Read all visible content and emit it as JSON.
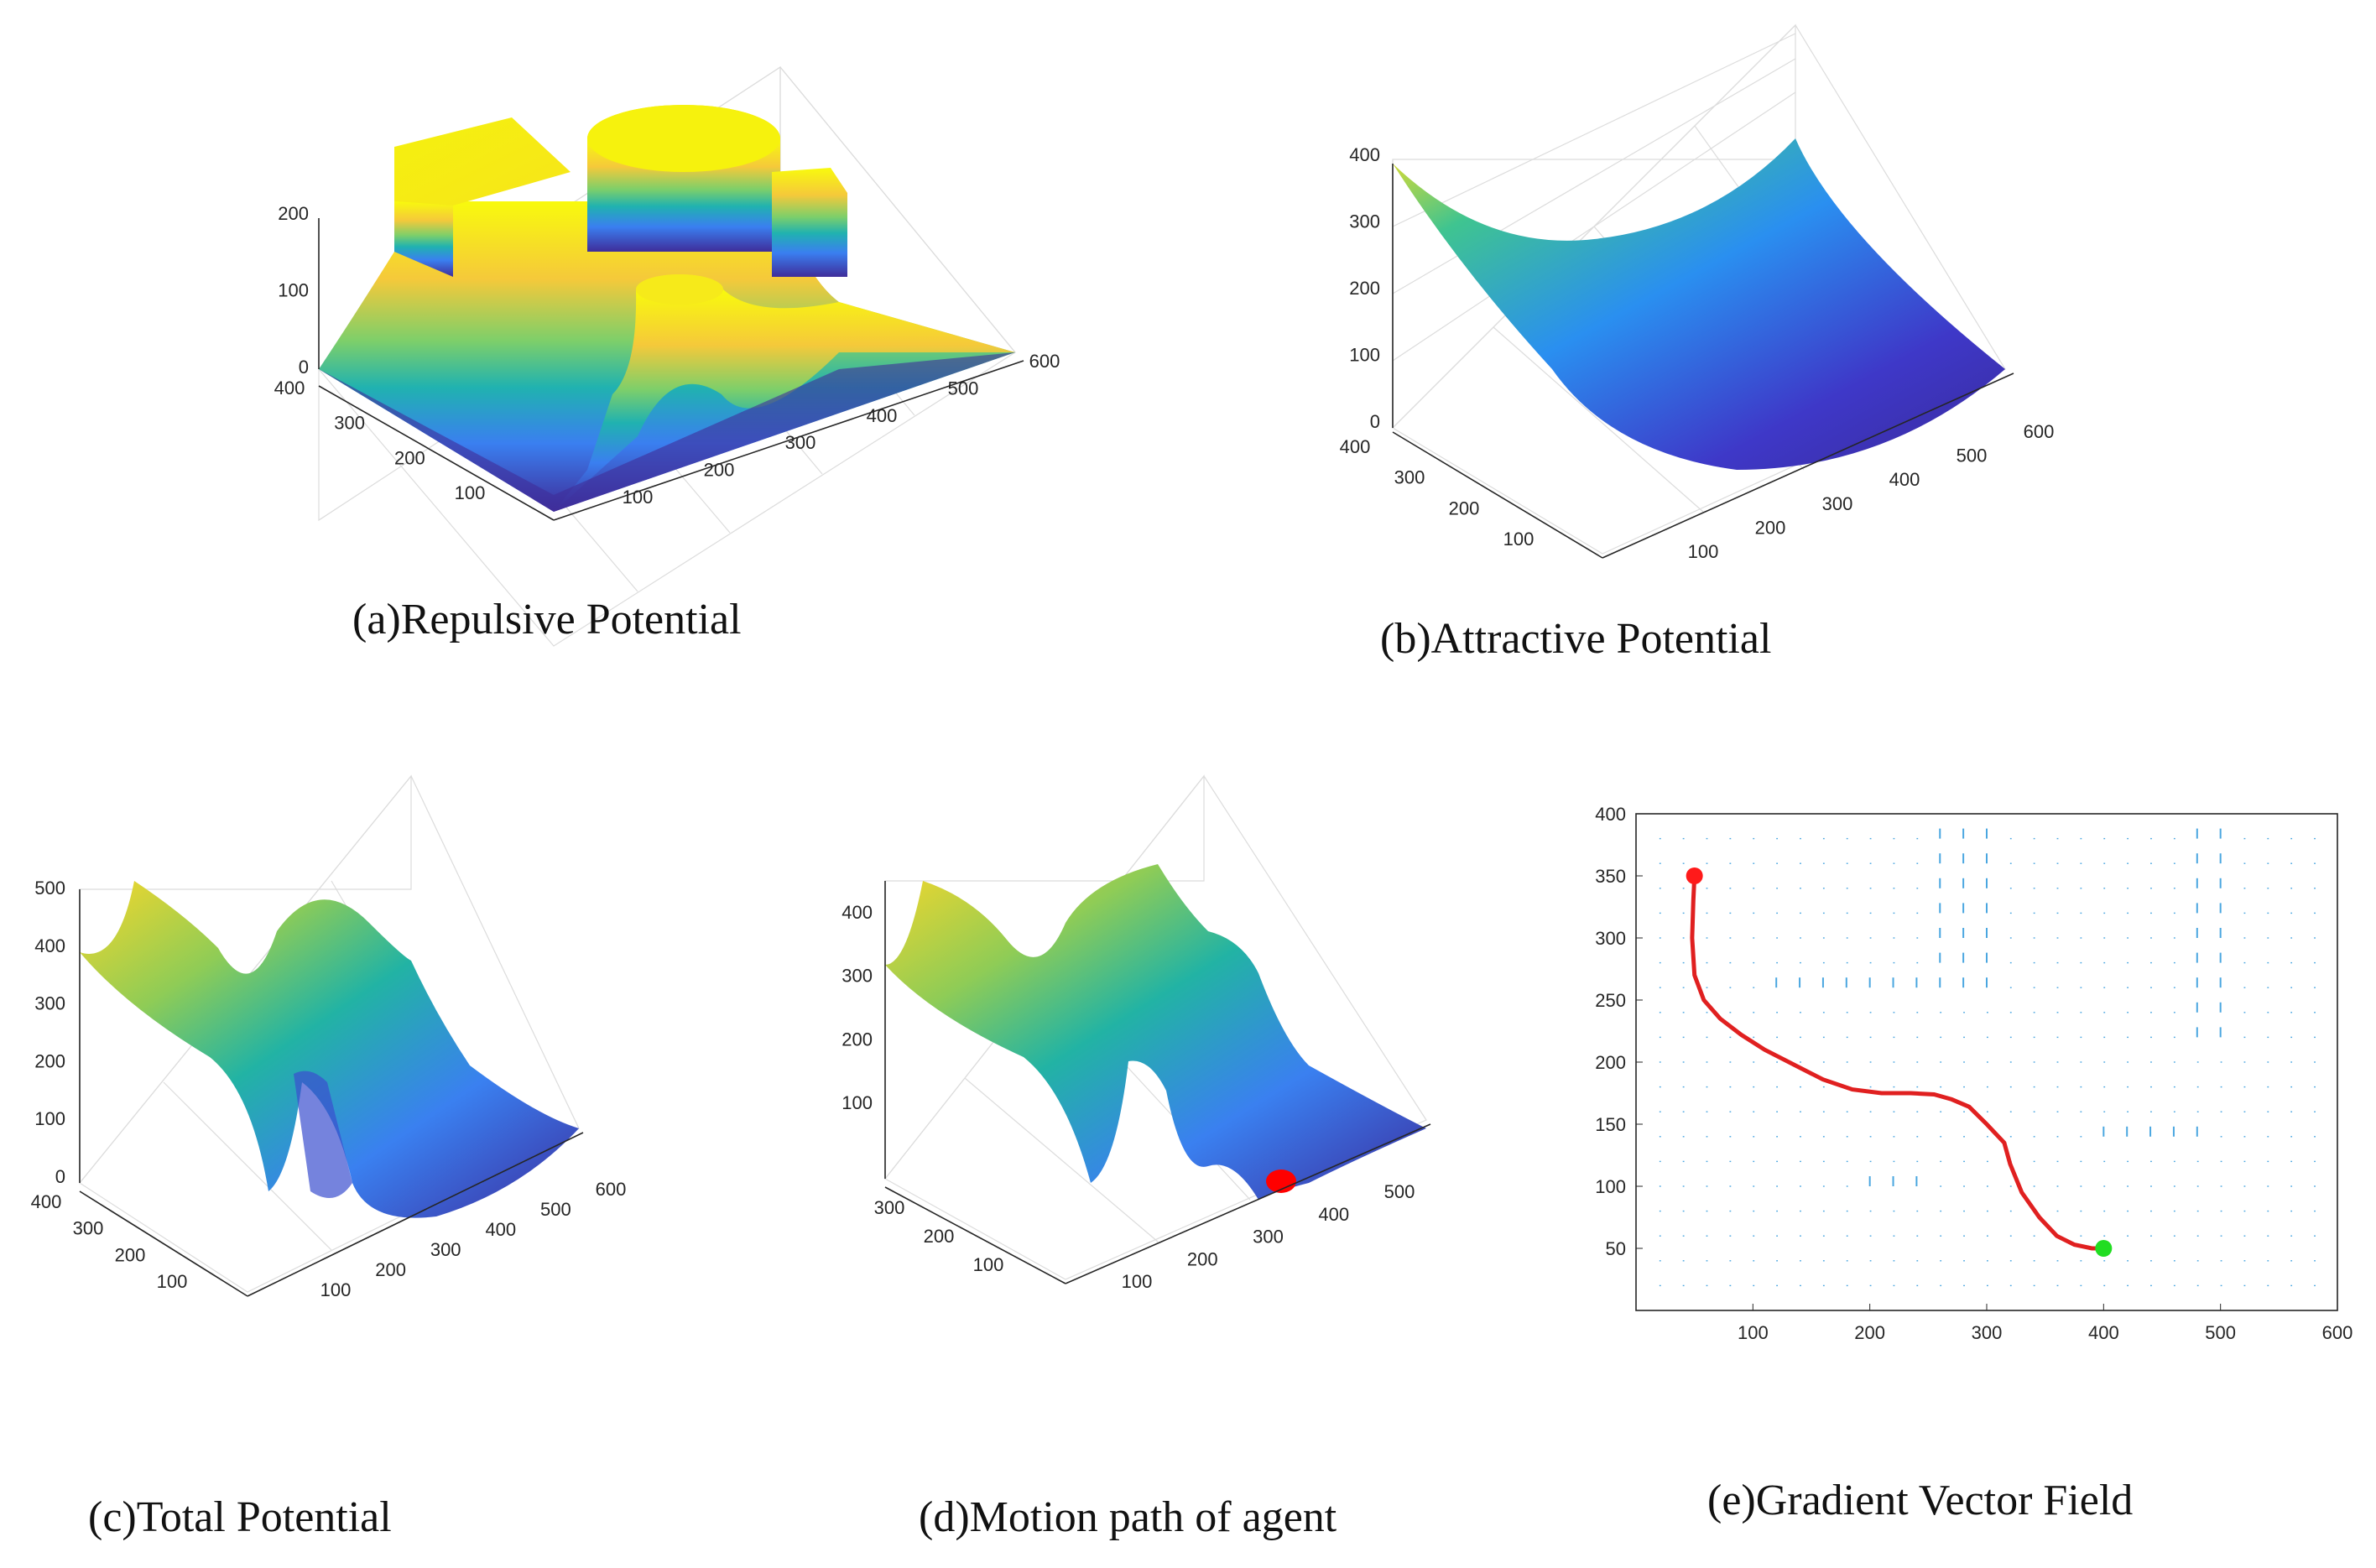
{
  "chart_data": [
    {
      "panel": "a",
      "type": "surface3d",
      "caption": "(a)Repulsive Potential",
      "x_ticks": [
        "100",
        "200",
        "300",
        "400",
        "500",
        "600"
      ],
      "y_ticks": [
        "100",
        "200",
        "300",
        "400"
      ],
      "z_ticks": [
        "0",
        "100",
        "200"
      ],
      "xlim": [
        0,
        600
      ],
      "ylim": [
        0,
        400
      ],
      "zlim": [
        0,
        200
      ],
      "description_values": {
        "plateau_height": 200,
        "base_height": 0
      }
    },
    {
      "panel": "b",
      "type": "surface3d",
      "caption": "(b)Attractive Potential",
      "x_ticks": [
        "100",
        "200",
        "300",
        "400",
        "500",
        "600"
      ],
      "y_ticks": [
        "100",
        "200",
        "300",
        "400"
      ],
      "z_ticks": [
        "0",
        "100",
        "200",
        "300",
        "400"
      ],
      "xlim": [
        0,
        600
      ],
      "ylim": [
        0,
        400
      ],
      "zlim": [
        0,
        400
      ]
    },
    {
      "panel": "c",
      "type": "surface3d",
      "caption": "(c)Total Potential",
      "x_ticks": [
        "100",
        "200",
        "300",
        "400",
        "500",
        "600"
      ],
      "y_ticks": [
        "100",
        "200",
        "300",
        "400"
      ],
      "z_ticks": [
        "0",
        "100",
        "200",
        "300",
        "400",
        "500"
      ],
      "xlim": [
        0,
        600
      ],
      "ylim": [
        0,
        400
      ],
      "zlim": [
        0,
        500
      ]
    },
    {
      "panel": "d",
      "type": "surface3d",
      "caption": "(d)Motion path of agent",
      "x_ticks": [
        "100",
        "200",
        "300",
        "400",
        "500"
      ],
      "y_ticks": [
        "100",
        "200",
        "300"
      ],
      "z_ticks": [
        "100",
        "200",
        "300",
        "400"
      ],
      "xlim": [
        0,
        550
      ],
      "ylim": [
        0,
        350
      ],
      "zlim": [
        0,
        450
      ],
      "marker": {
        "color": "#ff0000",
        "label": "agent"
      }
    },
    {
      "panel": "e",
      "type": "quiver",
      "caption": "(e)Gradient Vector Field",
      "x_ticks": [
        "100",
        "200",
        "300",
        "400",
        "500",
        "600"
      ],
      "y_ticks": [
        "50",
        "100",
        "150",
        "200",
        "250",
        "300",
        "350",
        "400"
      ],
      "xlim": [
        0,
        600
      ],
      "ylim": [
        0,
        400
      ],
      "path": {
        "color": "#e02020",
        "x": [
          50,
          49,
          48,
          50,
          58,
          72,
          90,
          110,
          135,
          160,
          185,
          210,
          235,
          255,
          270,
          285,
          300,
          315,
          320,
          330,
          345,
          360,
          375,
          390,
          400
        ],
        "y": [
          350,
          330,
          300,
          270,
          250,
          235,
          222,
          210,
          198,
          186,
          178,
          175,
          175,
          174,
          170,
          164,
          150,
          135,
          118,
          95,
          75,
          60,
          53,
          50,
          50
        ]
      },
      "start": {
        "x": 50,
        "y": 350,
        "color": "#ff1a1a"
      },
      "goal": {
        "x": 400,
        "y": 50,
        "color": "#22dd22"
      },
      "arrow_color": "#4aa6e0"
    }
  ]
}
